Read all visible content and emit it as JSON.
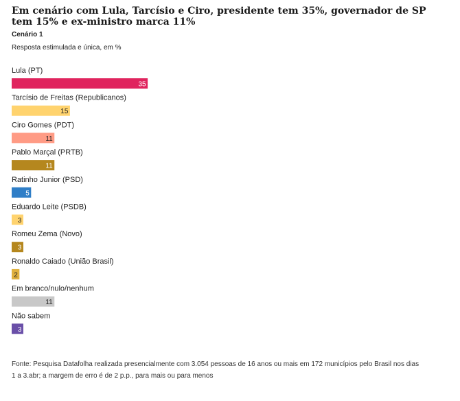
{
  "header": {
    "title": "Em cenário com Lula, Tarcísio e Ciro, presidente tem 35%, governador de SP tem 15% e ex-ministro marca 11%",
    "subtitle": "Cenário 1",
    "note": "Resposta estimulada e única, em %"
  },
  "footer": {
    "source": "Fonte: Pesquisa Datafolha realizada presencialmente com 3.054 pessoas de 16 anos ou mais em 172 municípios pelo Brasil nos dias 1 a 3.abr; a margem de erro é de 2 p.p., para mais ou para menos"
  },
  "chart_data": {
    "type": "bar",
    "orientation": "horizontal",
    "categories": [
      "Lula (PT)",
      "Tarcísio de Freitas (Republicanos)",
      "Ciro Gomes (PDT)",
      "Pablo Marçal (PRTB)",
      "Ratinho Junior (PSD)",
      "Eduardo Leite (PSDB)",
      "Romeu Zema (Novo)",
      "Ronaldo Caiado (União Brasil)",
      "Em branco/nulo/nenhum",
      "Não sabem"
    ],
    "values": [
      35,
      15,
      11,
      11,
      5,
      3,
      3,
      2,
      11,
      3
    ],
    "value_labels": [
      "35",
      "15",
      "11",
      "11",
      "5",
      "3",
      "3",
      "2",
      "11",
      "3"
    ],
    "colors": [
      "#e0245e",
      "#ffd36e",
      "#ff9b85",
      "#b5871e",
      "#2f7ec7",
      "#ffd36e",
      "#b5871e",
      "#e0b13e",
      "#c8c8c8",
      "#6a4fa8"
    ],
    "label_colors": [
      "#ffffff",
      "#222222",
      "#222222",
      "#ffffff",
      "#ffffff",
      "#222222",
      "#ffffff",
      "#222222",
      "#222222",
      "#ffffff"
    ],
    "xlim": [
      0,
      100
    ],
    "grid": false,
    "legend": false
  }
}
